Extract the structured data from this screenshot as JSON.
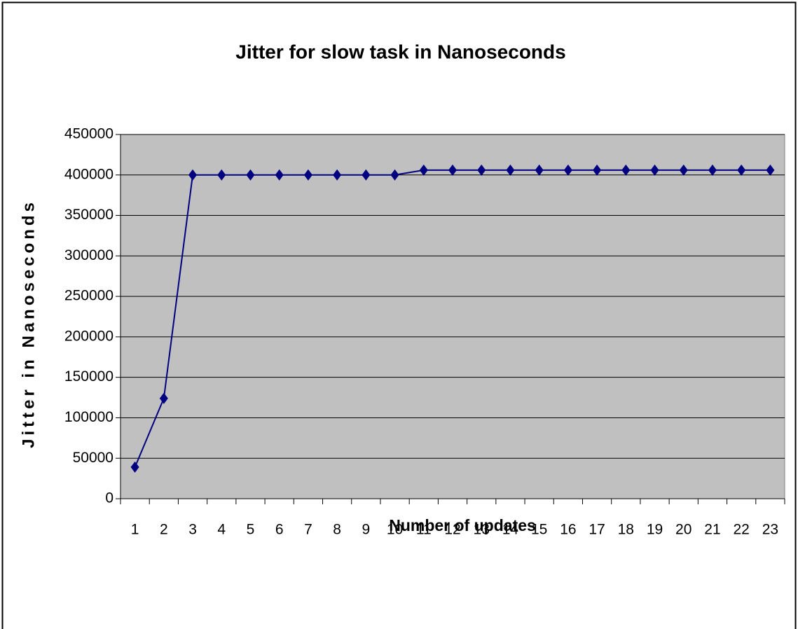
{
  "chart_data": {
    "type": "line",
    "title": "Jitter for slow task in Nanoseconds",
    "x_label": "Number of updates",
    "y_label": "Jitter in Nanoseconds",
    "categories": [
      "1",
      "2",
      "3",
      "4",
      "5",
      "6",
      "7",
      "8",
      "9",
      "10",
      "11",
      "12",
      "13",
      "14",
      "15",
      "16",
      "17",
      "18",
      "19",
      "20",
      "21",
      "22",
      "23"
    ],
    "series": [
      {
        "name": "Jitter",
        "color": "#000080",
        "values": [
          39000,
          124000,
          400000,
          400000,
          400000,
          400000,
          400000,
          400000,
          400000,
          400000,
          406000,
          406000,
          406000,
          406000,
          406000,
          406000,
          406000,
          406000,
          406000,
          406000,
          406000,
          406000,
          406000
        ]
      }
    ],
    "ylim": [
      0,
      450000
    ],
    "yticks": [
      0,
      50000,
      100000,
      150000,
      200000,
      250000,
      300000,
      350000,
      400000,
      450000
    ],
    "grid": true,
    "plot_background": "#c0c0c0"
  }
}
